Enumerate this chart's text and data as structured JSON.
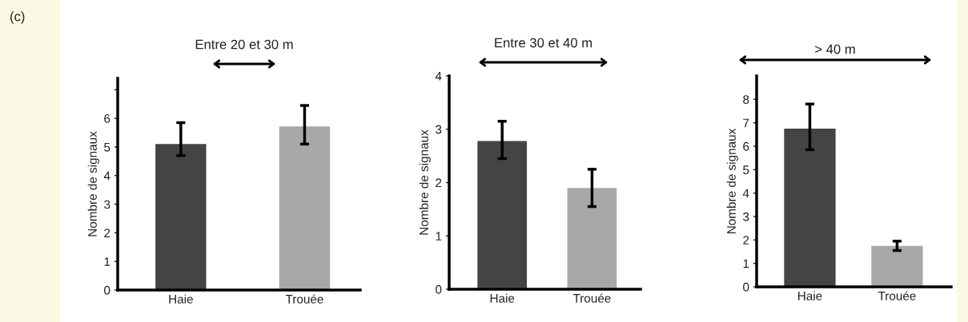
{
  "chart_data": [
    {
      "type": "bar",
      "title": "Entre 20 et 30 m",
      "ylabel": "Nombre de signaux",
      "annotations": [
        "(c)"
      ],
      "categories": [
        "Haie",
        "Trouée"
      ],
      "values": [
        5.1,
        5.72
      ],
      "colors": [
        "#444444",
        "#a8a8a8"
      ],
      "errors": [
        [
          4.7,
          5.85
        ],
        [
          5.1,
          6.45
        ]
      ],
      "ylim": [
        0,
        7.4
      ],
      "yticks": [
        0,
        1,
        2,
        3,
        4,
        5,
        6,
        {
          "value": 7,
          "label": null
        }
      ],
      "grid": false,
      "legend": false
    },
    {
      "type": "bar",
      "title": "Entre 30 et 40 m",
      "ylabel": "Nombre de signaux",
      "categories": [
        "Haie",
        "Trouée"
      ],
      "values": [
        2.78,
        1.9
      ],
      "colors": [
        "#444444",
        "#a8a8a8"
      ],
      "errors": [
        [
          2.45,
          3.15
        ],
        [
          1.55,
          2.25
        ]
      ],
      "ylim": [
        0,
        4
      ],
      "yticks": [
        0,
        1,
        2,
        3,
        4
      ],
      "grid": false,
      "legend": false
    },
    {
      "type": "bar",
      "title": "> 40 m",
      "ylabel": "Nombre de signaux",
      "categories": [
        "Haie",
        "Trouée"
      ],
      "values": [
        6.75,
        1.75
      ],
      "colors": [
        "#444444",
        "#a8a8a8"
      ],
      "errors": [
        [
          5.85,
          7.8
        ],
        [
          1.55,
          1.95
        ]
      ],
      "ylim": [
        0,
        9
      ],
      "yticks": [
        0,
        1,
        2,
        3,
        4,
        5,
        6,
        7,
        8
      ],
      "grid": false,
      "legend": false
    }
  ]
}
